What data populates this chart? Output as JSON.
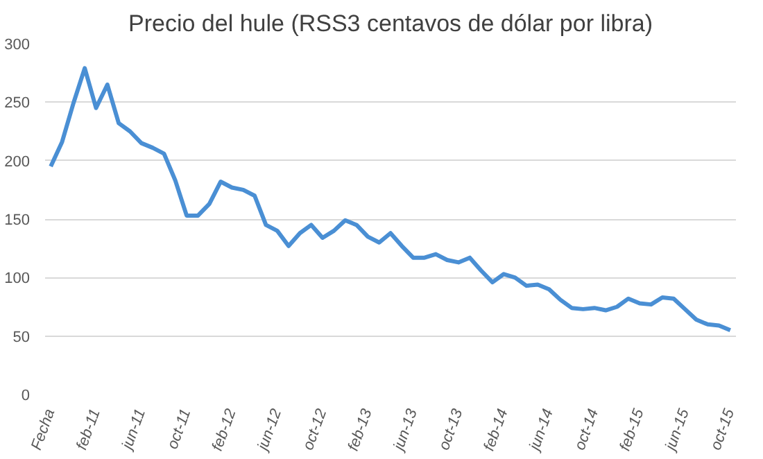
{
  "chart_data": {
    "type": "line",
    "title": "Precio del hule (RSS3 centavos de dólar por libra)",
    "categories": [
      "Fecha",
      null,
      null,
      null,
      "feb-11",
      null,
      null,
      null,
      "jun-11",
      null,
      null,
      null,
      "oct-11",
      null,
      null,
      null,
      "feb-12",
      null,
      null,
      null,
      "jun-12",
      null,
      null,
      null,
      "oct-12",
      null,
      null,
      null,
      "feb-13",
      null,
      null,
      null,
      "jun-13",
      null,
      null,
      null,
      "oct-13",
      null,
      null,
      null,
      "feb-14",
      null,
      null,
      null,
      "jun-14",
      null,
      null,
      null,
      "oct-14",
      null,
      null,
      null,
      "feb-15",
      null,
      null,
      null,
      "jun-15",
      null,
      null,
      null,
      "oct-15"
    ],
    "series": [
      {
        "color": "#4a8fd4",
        "values": [
          195,
          216,
          249,
          279,
          245,
          265,
          232,
          225,
          215,
          211,
          206,
          183,
          153,
          153,
          163,
          182,
          177,
          175,
          170,
          145,
          140,
          127,
          138,
          145,
          134,
          140,
          149,
          145,
          135,
          130,
          138,
          127,
          117,
          117,
          120,
          115,
          113,
          117,
          106,
          96,
          103,
          100,
          93,
          94,
          90,
          81,
          74,
          73,
          74,
          72,
          75,
          82,
          78,
          77,
          83,
          82,
          73,
          64,
          60,
          59,
          55
        ]
      }
    ],
    "ylim": [
      0,
      300
    ],
    "yticks": [
      0,
      50,
      100,
      150,
      200,
      250,
      300
    ],
    "grid": "y",
    "marker": "none",
    "line_style": "solid"
  }
}
